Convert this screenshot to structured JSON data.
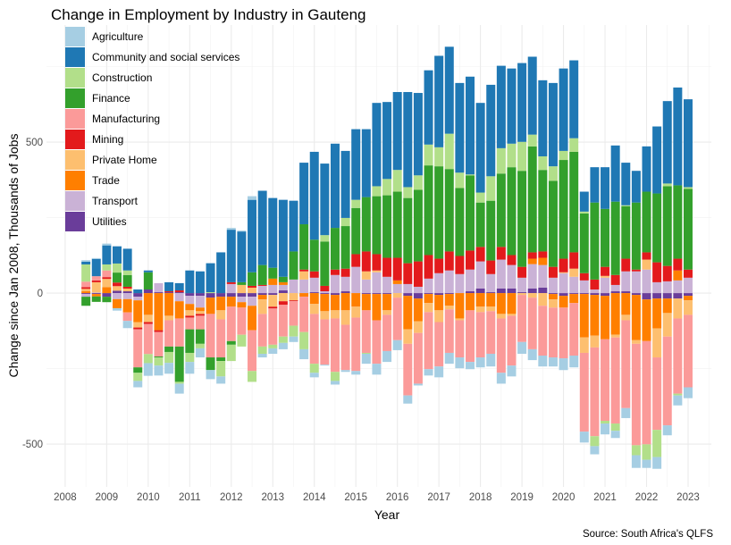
{
  "chart_data": {
    "type": "bar",
    "stacked": true,
    "title": "Change in Employment by Industry in Gauteng",
    "xlabel": "Year",
    "ylabel": "Change since Jan 2008, Thousands of Jobs",
    "caption": "Source: South Africa's QLFS",
    "xlim": [
      2007.55,
      2023.56
    ],
    "ylim": [
      -642,
      888
    ],
    "xticks": [
      2008,
      2009,
      2010,
      2011,
      2012,
      2013,
      2014,
      2015,
      2016,
      2017,
      2018,
      2019,
      2020,
      2021,
      2022,
      2023
    ],
    "xtick_labels": [
      "2008",
      "2009",
      "2010",
      "2011",
      "2012",
      "2013",
      "2014",
      "2015",
      "2016",
      "2017",
      "2018",
      "2019",
      "2020",
      "2021",
      "2022",
      "2023"
    ],
    "yticks": [
      -500,
      0,
      500
    ],
    "ytick_labels": [
      "-500",
      "0",
      "500"
    ],
    "grid": true,
    "legend_position": "top-left inside",
    "x": [
      2008.5,
      2008.75,
      2009.0,
      2009.25,
      2009.5,
      2009.75,
      2010.0,
      2010.25,
      2010.5,
      2010.75,
      2011.0,
      2011.25,
      2011.5,
      2011.75,
      2012.0,
      2012.25,
      2012.5,
      2012.75,
      2013.0,
      2013.25,
      2013.5,
      2013.75,
      2014.0,
      2014.25,
      2014.5,
      2014.75,
      2015.0,
      2015.25,
      2015.5,
      2015.75,
      2016.0,
      2016.25,
      2016.5,
      2016.75,
      2017.0,
      2017.25,
      2017.5,
      2017.75,
      2018.0,
      2018.25,
      2018.5,
      2018.75,
      2019.0,
      2019.25,
      2019.5,
      2019.75,
      2020.0,
      2020.25,
      2020.5,
      2020.75,
      2021.0,
      2021.25,
      2021.5,
      2021.75,
      2022.0,
      2022.25,
      2022.5,
      2022.75,
      2023.0
    ],
    "series": [
      {
        "name": "Agriculture",
        "color": "#A6CEE3",
        "values": [
          5,
          3,
          6,
          -8,
          -24,
          -21,
          -42,
          -33,
          -36,
          -33,
          -39,
          -30,
          -30,
          -24,
          6,
          3,
          12,
          -12,
          -18,
          -21,
          -18,
          -33,
          -15,
          -3,
          -12,
          -6,
          -12,
          -33,
          -36,
          -36,
          -33,
          -27,
          -6,
          -21,
          -36,
          -36,
          -36,
          -24,
          -33,
          -42,
          -36,
          -36,
          -39,
          -36,
          -36,
          -30,
          -39,
          -39,
          -36,
          -27,
          -36,
          -24,
          -33,
          -42,
          -27,
          -39,
          -33,
          -33,
          -36
        ]
      },
      {
        "name": "Community and social services",
        "color": "#1F78B4",
        "values": [
          9,
          57,
          63,
          57,
          72,
          12,
          6,
          0,
          30,
          24,
          75,
          72,
          96,
          135,
          174,
          168,
          240,
          246,
          231,
          255,
          168,
          204,
          291,
          237,
          279,
          222,
          234,
          225,
          276,
          255,
          258,
          315,
          273,
          246,
          303,
          288,
          297,
          324,
          297,
          303,
          273,
          249,
          261,
          258,
          252,
          276,
          273,
          258,
          66,
          117,
          138,
          186,
          141,
          105,
          150,
          222,
          273,
          324,
          291
        ]
      },
      {
        "name": "Construction",
        "color": "#B2DF8A",
        "values": [
          57,
          0,
          20,
          30,
          15,
          -27,
          -30,
          -27,
          -36,
          -6,
          -30,
          -15,
          3,
          -51,
          -54,
          -39,
          -36,
          -24,
          -12,
          -21,
          -36,
          -57,
          -30,
          21,
          -30,
          27,
          27,
          -3,
          33,
          54,
          72,
          36,
          48,
          69,
          63,
          117,
          51,
          3,
          33,
          81,
          84,
          78,
          96,
          39,
          45,
          48,
          30,
          45,
          6,
          -33,
          -9,
          -24,
          3,
          -33,
          -51,
          -90,
          9,
          -6,
          6
        ]
      },
      {
        "name": "Finance",
        "color": "#33A02C",
        "values": [
          -30,
          -18,
          -18,
          33,
          39,
          -18,
          57,
          -3,
          -18,
          -117,
          -78,
          -48,
          -42,
          -12,
          -12,
          9,
          45,
          66,
          36,
          18,
          93,
          150,
          105,
          147,
          138,
          141,
          153,
          180,
          192,
          207,
          219,
          216,
          237,
          297,
          306,
          273,
          225,
          249,
          147,
          198,
          243,
          291,
          318,
          351,
          270,
          285,
          327,
          333,
          198,
          255,
          192,
          243,
          174,
          222,
          201,
          228,
          264,
          243,
          267
        ]
      },
      {
        "name": "Manufacturing",
        "color": "#FB9A99",
        "values": [
          18,
          14,
          22,
          0,
          -28,
          -126,
          -100,
          -81,
          -87,
          -93,
          -39,
          -45,
          -144,
          -126,
          -114,
          -90,
          -135,
          -108,
          -120,
          -105,
          -81,
          -117,
          -165,
          -150,
          -177,
          -150,
          -177,
          -141,
          -144,
          -120,
          -141,
          -171,
          -168,
          -189,
          -147,
          -144,
          -123,
          -171,
          -150,
          -141,
          -180,
          -165,
          -156,
          -171,
          -165,
          -165,
          -168,
          -174,
          -261,
          -294,
          -270,
          -285,
          -291,
          -336,
          -342,
          -240,
          -294,
          -249,
          -240
        ]
      },
      {
        "name": "Mining",
        "color": "#E31A1C",
        "values": [
          6,
          6,
          6,
          12,
          6,
          -6,
          -6,
          -6,
          3,
          6,
          -6,
          -6,
          0,
          0,
          6,
          0,
          6,
          3,
          -6,
          -12,
          -3,
          6,
          21,
          18,
          18,
          27,
          42,
          66,
          54,
          63,
          75,
          69,
          84,
          78,
          48,
          63,
          60,
          63,
          48,
          45,
          42,
          33,
          36,
          21,
          21,
          36,
          45,
          54,
          24,
          33,
          30,
          33,
          42,
          6,
          24,
          66,
          51,
          39,
          27
        ]
      },
      {
        "name": "Private Home",
        "color": "#FDBF6F",
        "values": [
          8,
          34,
          27,
          15,
          9,
          -18,
          -24,
          0,
          -15,
          0,
          -18,
          -9,
          0,
          -30,
          0,
          27,
          18,
          -48,
          -39,
          -27,
          -24,
          27,
          -33,
          -27,
          -27,
          -48,
          -36,
          27,
          6,
          -15,
          -15,
          -48,
          -39,
          -30,
          -39,
          -12,
          -6,
          0,
          -18,
          -15,
          -15,
          -6,
          -6,
          -15,
          -42,
          -27,
          3,
          27,
          -51,
          -39,
          6,
          -9,
          -18,
          -12,
          33,
          -96,
          -78,
          -66,
          -48
        ]
      },
      {
        "name": "Trade",
        "color": "#FF7F00",
        "values": [
          6,
          -8,
          20,
          -30,
          -44,
          -72,
          -72,
          -123,
          -75,
          -57,
          -21,
          -12,
          -54,
          -45,
          -33,
          -18,
          -81,
          -15,
          21,
          9,
          0,
          -12,
          -36,
          -57,
          -51,
          -57,
          -45,
          -54,
          -87,
          -54,
          12,
          -111,
          -75,
          -30,
          -51,
          -39,
          -84,
          -57,
          -45,
          -45,
          -69,
          -69,
          0,
          18,
          24,
          -18,
          -39,
          -30,
          -144,
          -135,
          -144,
          -138,
          -72,
          -150,
          -138,
          -99,
          -48,
          33,
          -15
        ]
      },
      {
        "name": "Transport",
        "color": "#CAB2D6",
        "values": [
          -9,
          2,
          0,
          -20,
          -20,
          -12,
          0,
          30,
          0,
          -27,
          -27,
          -39,
          0,
          0,
          30,
          -18,
          -30,
          24,
          27,
          18,
          45,
          45,
          48,
          6,
          60,
          48,
          87,
          45,
          69,
          54,
          30,
          30,
          21,
          48,
          66,
          75,
          63,
          72,
          90,
          60,
          96,
          78,
          48,
          81,
          75,
          51,
          66,
          54,
          42,
          12,
          51,
          21,
          66,
          72,
          78,
          36,
          39,
          42,
          51
        ]
      },
      {
        "name": "Utilities",
        "color": "#6A3D9A",
        "values": [
          -3,
          -3,
          -12,
          8,
          6,
          -12,
          12,
          3,
          3,
          3,
          -9,
          -9,
          -15,
          -12,
          -12,
          -12,
          -12,
          -6,
          -6,
          9,
          0,
          0,
          3,
          -3,
          -6,
          6,
          0,
          -3,
          -3,
          -3,
          0,
          -9,
          -18,
          -3,
          -6,
          -3,
          0,
          6,
          15,
          3,
          15,
          15,
          3,
          15,
          18,
          -3,
          -9,
          -3,
          -3,
          -6,
          -9,
          6,
          6,
          -6,
          -21,
          -18,
          -18,
          -18,
          -9
        ]
      }
    ]
  }
}
